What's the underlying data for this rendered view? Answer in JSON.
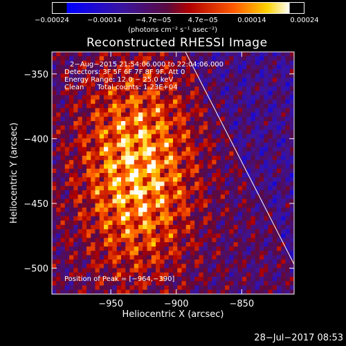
{
  "chart_data": {
    "type": "heatmap",
    "title": "Reconstructed RHESSI Image",
    "xlabel": "Heliocentric X (arcsec)",
    "ylabel": "Heliocentric Y (arcsec)",
    "xlim": [
      -995,
      -810
    ],
    "ylim": [
      -520,
      -333
    ],
    "x_ticks": [
      -950,
      -900,
      -850
    ],
    "x_tick_labels": [
      "−950",
      "−900",
      "−850"
    ],
    "y_ticks": [
      -350,
      -400,
      -450,
      -500
    ],
    "y_tick_labels": [
      "−350",
      "−400",
      "−450",
      "−500"
    ],
    "colorbar": {
      "colormap": "blue-purple-red-yellow-white",
      "range": [
        -0.00024,
        0.00024
      ],
      "tick_values": [
        -0.00024,
        -0.00014,
        -4.7e-05,
        4.7e-05,
        0.00014,
        0.00024
      ],
      "tick_labels": [
        "−0.00024",
        "−0.00014",
        "−4.7e−05",
        "4.7e−05",
        "0.00014",
        "0.00024"
      ],
      "unit_label": "(photons cm⁻² s⁻¹ asec⁻²)"
    },
    "annotations": [
      "2−Aug−2015 21:54:06.000 to 22:04:06.000",
      "Detectors: 3F 5F 6F 7F 8F 9F, Att 0",
      "Energy Range: 12.0 − 25.0 keV",
      "Clean      Total counts: 1.23E+04"
    ],
    "peak_label": "Position of Peak = [−964,−390]",
    "peak": [
      -964,
      -390
    ],
    "limb_line": [
      [
        -893,
        -333
      ],
      [
        -810,
        -497
      ]
    ],
    "footer": "28−Jul−2017 08:53"
  }
}
